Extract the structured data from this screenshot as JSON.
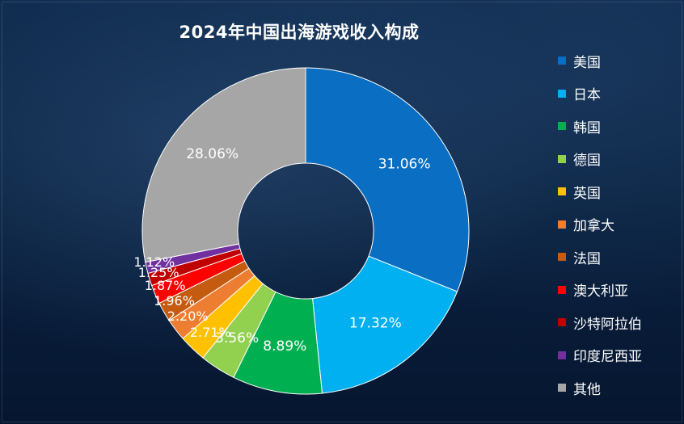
{
  "chart_data": {
    "type": "pie",
    "donut": true,
    "title": "2024年中国出海游戏收入构成",
    "categories": [
      "美国",
      "日本",
      "韩国",
      "德国",
      "英国",
      "加拿大",
      "法国",
      "澳大利亚",
      "沙特阿拉伯",
      "印度尼西亚",
      "其他"
    ],
    "values": [
      31.06,
      17.32,
      8.89,
      3.56,
      2.71,
      2.2,
      1.96,
      1.87,
      1.25,
      1.12,
      28.06
    ],
    "value_labels": [
      "31.06%",
      "17.32%",
      "8.89%",
      "3.56%",
      "2.71%",
      "2.20%",
      "1.96%",
      "1.87%",
      "1.25%",
      "1.12%",
      "28.06%"
    ],
    "colors": [
      "#0a6fc2",
      "#00b0f0",
      "#00b050",
      "#92d050",
      "#ffc000",
      "#ed7d31",
      "#c55a11",
      "#ff0000",
      "#c00000",
      "#7030a0",
      "#a6a6a6"
    ],
    "legend_position": "right",
    "start": "top, clockwise",
    "grid": false
  }
}
